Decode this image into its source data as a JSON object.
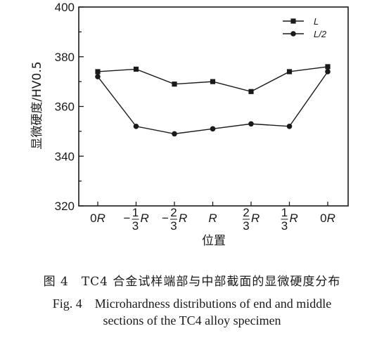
{
  "chart_data": {
    "type": "line",
    "categories": [
      "0R",
      "-1/3R",
      "-2/3R",
      "R",
      "2/3R",
      "1/3R",
      "0R"
    ],
    "series": [
      {
        "name": "L",
        "marker": "square",
        "values": [
          374,
          375,
          369,
          370,
          366,
          374,
          376
        ]
      },
      {
        "name": "L/2",
        "marker": "circle",
        "values": [
          372,
          352,
          349,
          351,
          353,
          352,
          374
        ]
      }
    ],
    "xlabel": "位置",
    "ylabel": "显微硬度/HV0.5",
    "ylim": [
      320,
      400
    ],
    "yticks": [
      320,
      340,
      360,
      380,
      400
    ],
    "grid": false,
    "legend_position": "top-right",
    "line_color": "#1a1a1a"
  },
  "caption": {
    "cn": "图 4　TC4 合金试样端部与中部截面的显微硬度分布",
    "en_line1": "Fig. 4　Microhardness distributions of end and middle",
    "en_line2": "sections of the TC4 alloy specimen"
  }
}
